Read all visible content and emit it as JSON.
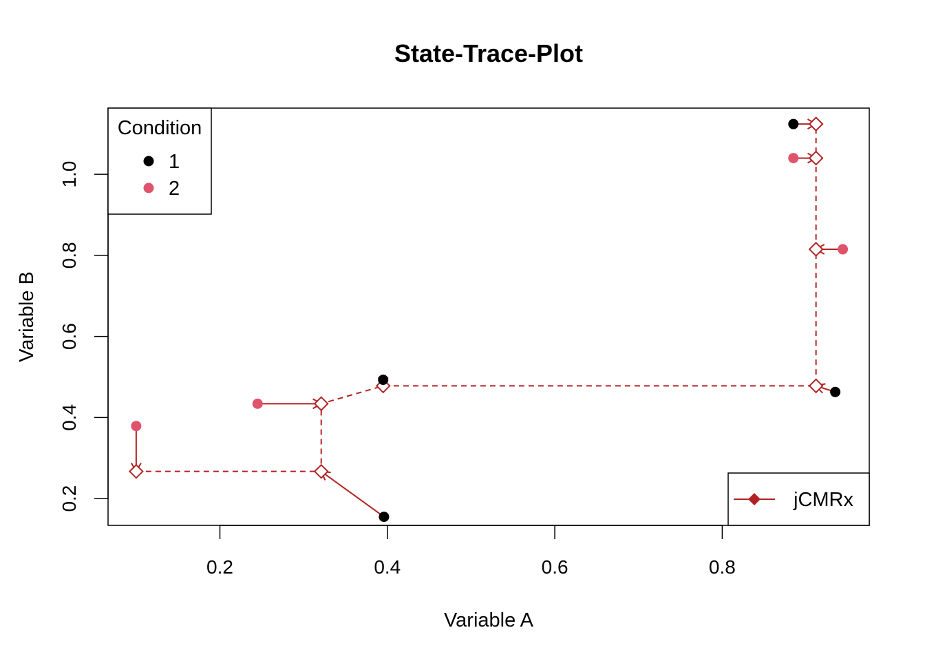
{
  "chart_data": {
    "type": "scatter",
    "title": "State-Trace-Plot",
    "xlabel": "Variable A",
    "ylabel": "Variable B",
    "xlim": [
      0.0664,
      0.9756
    ],
    "ylim": [
      0.1339,
      1.1633
    ],
    "xticks": [
      0.2,
      0.4,
      0.6,
      0.8
    ],
    "yticks": [
      0.2,
      0.4,
      0.6,
      0.8,
      1.0
    ],
    "xtick_labels": [
      "0.2",
      "0.4",
      "0.6",
      "0.8"
    ],
    "ytick_labels": [
      "0.2",
      "0.4",
      "0.6",
      "0.8",
      "1.0"
    ],
    "grid": false,
    "colors": {
      "cond1": "#000000",
      "cond2": "#DF536B",
      "fit": "#B22222"
    },
    "condition_legend": {
      "title": "Condition",
      "placement": "top-left",
      "entries": [
        {
          "label": "1",
          "color": "#000000"
        },
        {
          "label": "2",
          "color": "#DF536B"
        }
      ]
    },
    "fit_legend": {
      "placement": "bottom-right",
      "entries": [
        {
          "label": "jCMRx",
          "color": "#B22222"
        }
      ]
    },
    "points": [
      {
        "condition": 1,
        "x": 0.396,
        "y": 0.155
      },
      {
        "condition": 1,
        "x": 0.395,
        "y": 0.493
      },
      {
        "condition": 1,
        "x": 0.935,
        "y": 0.463
      },
      {
        "condition": 1,
        "x": 0.885,
        "y": 1.124
      },
      {
        "condition": 2,
        "x": 0.1,
        "y": 0.379
      },
      {
        "condition": 2,
        "x": 0.245,
        "y": 0.434
      },
      {
        "condition": 2,
        "x": 0.944,
        "y": 0.815
      },
      {
        "condition": 2,
        "x": 0.885,
        "y": 1.04
      }
    ],
    "fit_path": [
      {
        "x": 0.1,
        "y": 0.267
      },
      {
        "x": 0.321,
        "y": 0.267
      },
      {
        "x": 0.321,
        "y": 0.434
      },
      {
        "x": 0.395,
        "y": 0.478
      },
      {
        "x": 0.912,
        "y": 0.478
      },
      {
        "x": 0.912,
        "y": 0.815
      },
      {
        "x": 0.912,
        "y": 1.04
      },
      {
        "x": 0.912,
        "y": 1.124
      }
    ],
    "fit_links": [
      {
        "from": [
          0.396,
          0.155
        ],
        "to": [
          0.321,
          0.267
        ]
      },
      {
        "from": [
          0.1,
          0.379
        ],
        "to": [
          0.1,
          0.267
        ]
      },
      {
        "from": [
          0.245,
          0.434
        ],
        "to": [
          0.321,
          0.434
        ]
      },
      {
        "from": [
          0.395,
          0.493
        ],
        "to": [
          0.395,
          0.478
        ]
      },
      {
        "from": [
          0.935,
          0.463
        ],
        "to": [
          0.912,
          0.478
        ]
      },
      {
        "from": [
          0.944,
          0.815
        ],
        "to": [
          0.912,
          0.815
        ]
      },
      {
        "from": [
          0.885,
          1.04
        ],
        "to": [
          0.912,
          1.04
        ]
      },
      {
        "from": [
          0.885,
          1.124
        ],
        "to": [
          0.912,
          1.124
        ]
      }
    ]
  }
}
